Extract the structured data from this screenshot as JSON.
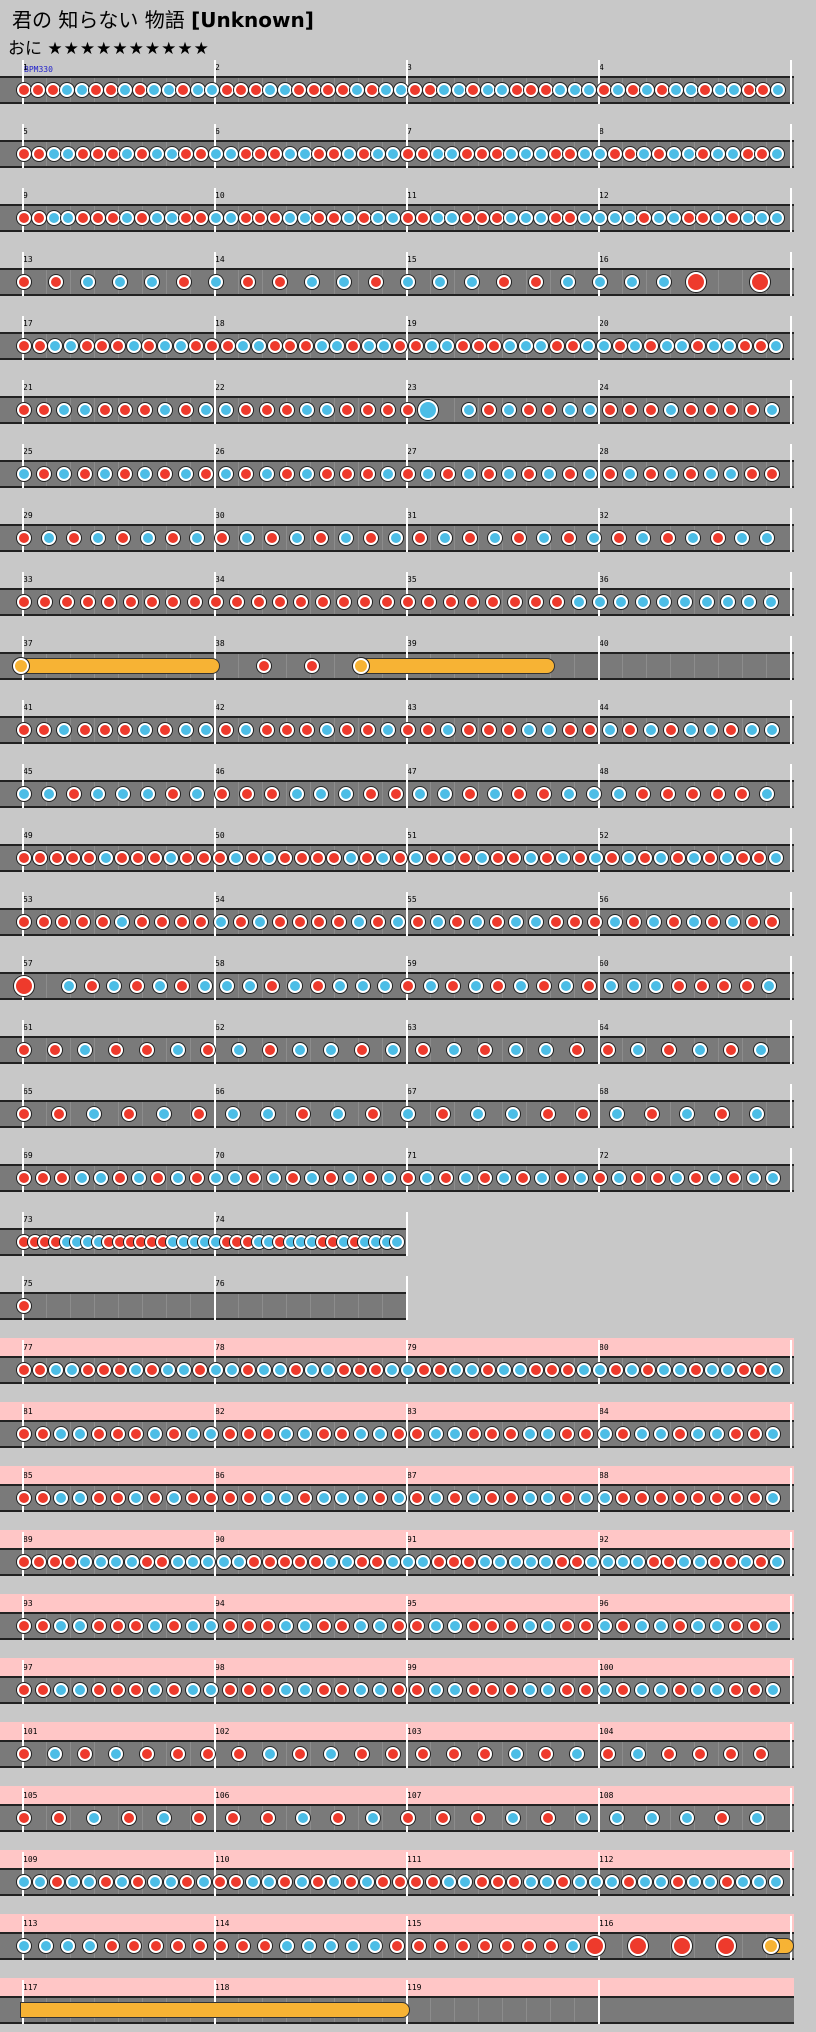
{
  "song": {
    "title": "君の 知らない 物語",
    "subtitle": "[Unknown]"
  },
  "course": {
    "name": "おに",
    "stars": "★★★★★★★★★★"
  },
  "bpm_label": "BPM330",
  "colors": {
    "don": "#ee3a2c",
    "ka": "#4cbde6",
    "roll": "#f7b334",
    "lane": "#7a7a7a",
    "gogo_band": "#ffc6c6",
    "background": "#c8c8c8"
  },
  "rows": [
    {
      "measures": [
        1,
        2,
        3,
        4
      ],
      "gogo": false,
      "notes": "dddkkddkdkkdkkdddkkddddkdkkddkkdkkdddkkkdkdkdkkdkkddk"
    },
    {
      "measures": [
        5,
        6,
        7,
        8
      ],
      "gogo": false,
      "notes": "ddkkdddkdkkddkkdddkkddkdkkddkkdddkkkddkkddkdkkdkkddk"
    },
    {
      "measures": [
        9,
        10,
        11,
        12
      ],
      "gogo": false,
      "notes": "ddkkdddkdkkddkkdddkkddkdkkddkkdddkkkddkkkkdkkddkdkkk"
    },
    {
      "measures": [
        13,
        14,
        15,
        16
      ],
      "gogo": false,
      "notes": "ddkkkdkddkkdkkkddkkkkD-D"
    },
    {
      "measures": [
        17,
        18,
        19,
        20
      ],
      "gogo": false,
      "notes": "ddkkdddkdkkdddkkdddkkdkkddkkdddkkkddkkdkdkkdkkddk"
    },
    {
      "measures": [
        21,
        22,
        23,
        24
      ],
      "gogo": false,
      "notes": "ddkkdddkdkkdddkkddddK-kdkddkkdddkddddk"
    },
    {
      "measures": [
        25,
        26,
        27,
        28
      ],
      "gogo": false,
      "notes": "kdkdkdkdkdkdkdkdddkdkdkdkdkdkdkdkdkkdd"
    },
    {
      "measures": [
        29,
        30,
        31,
        32
      ],
      "gogo": false,
      "notes": "dkdkdkdkdkdkdkdkdkdkdkdkdkdkdkk"
    },
    {
      "measures": [
        33,
        34,
        35,
        36
      ],
      "gogo": false,
      "notes": "ddddddddddddddddddddddddddkkkkkkkkkk"
    },
    {
      "measures": [
        37,
        38,
        39,
        40
      ],
      "gogo": false,
      "roll": true,
      "notes": "r-dd-r"
    },
    {
      "measures": [
        41,
        42,
        43,
        44
      ],
      "gogo": false,
      "notes": "ddkdddkdkkdkdddkddkddkdddkkddkdkdkkdkk"
    },
    {
      "measures": [
        45,
        46,
        47,
        48
      ],
      "gogo": false,
      "notes": "kkdkkkdkdddkkkddkkdkddkkkdddddk"
    },
    {
      "measures": [
        49,
        50,
        51,
        52
      ],
      "gogo": false,
      "notes": "dddddkdddkdddkdkddddkdkdkdkdkddkdkdkdkdkdkdkddk"
    },
    {
      "measures": [
        53,
        54,
        55,
        56
      ],
      "gogo": false,
      "notes": "dddddkddddkdkddddkdkdkdkdkkdddkdkdkdkdd"
    },
    {
      "measures": [
        57,
        58,
        59,
        60
      ],
      "gogo": false,
      "notes": "D-kdkdkdkkkdkdkkkdkdkdkdkdkkkddddk"
    },
    {
      "measures": [
        61,
        62,
        63,
        64
      ],
      "gogo": false,
      "notes": "ddkddkdkdkkdkdkdkkddkdkdk"
    },
    {
      "measures": [
        65,
        66,
        67,
        68
      ],
      "gogo": false,
      "notes": "ddkdkdkkdkdkdkkddkdkdk"
    },
    {
      "measures": [
        69,
        70,
        71,
        72
      ],
      "gogo": false,
      "notes": "dddkkdkdkdkkdkdkdkdkdkdkdkdkdkdkddkdkdkk"
    },
    {
      "measures": [
        73,
        74
      ],
      "gogo": false,
      "short": true,
      "notes": "ddddkkkkddddddkkkkkdddkkdkkkddkdkkkk"
    },
    {
      "measures": [
        75,
        76
      ],
      "gogo": false,
      "short": true,
      "notes": "d"
    },
    {
      "measures": [
        77,
        78,
        79,
        80
      ],
      "gogo": true,
      "notes": "ddkkdddkdkkdkkdkkdkkdddkkddkkdkkdddkkdkdkkdkkddk"
    },
    {
      "measures": [
        81,
        82,
        83,
        84
      ],
      "gogo": true,
      "notes": "ddkkdddkdkkdddkkddkkddkkdddkkddkdkkdkkddk"
    },
    {
      "measures": [
        85,
        86,
        87,
        88
      ],
      "gogo": true,
      "notes": "ddkkddkdkddddkkdkkkdkdkdkddkkdkkddddddddk"
    },
    {
      "measures": [
        89,
        90,
        91,
        92
      ],
      "gogo": true,
      "notes": "ddddkkkkddkkkkkdddddkkddkkkdddkkkkkddkkkkddkkddkdk"
    },
    {
      "measures": [
        93,
        94,
        95,
        96
      ],
      "gogo": true,
      "notes": "ddkkdddkdkkdddkkddkkddkkdddkkddkdkkdkkddk"
    },
    {
      "measures": [
        97,
        98,
        99,
        100
      ],
      "gogo": true,
      "notes": "ddkkdddkdkkdddkkddkkddkkdddkkddkdkkdkkddk"
    },
    {
      "measures": [
        101,
        102,
        103,
        104
      ],
      "gogo": true,
      "notes": "dkdkddddkdkdddddkdkdkdddd"
    },
    {
      "measures": [
        105,
        106,
        107,
        108
      ],
      "gogo": true,
      "notes": "ddkdkdddkdkdddkdkkkkdk"
    },
    {
      "measures": [
        109,
        110,
        111,
        112
      ],
      "gogo": true,
      "notes": "kkdkkdkdkkdkddkkdkdkdkddddkkdddkkdkkkdkkdkkdkkk"
    },
    {
      "measures": [
        113,
        114,
        115,
        116
      ],
      "gogo": true,
      "notes": "kkkkddddddddkkkkkddddddddkD-D-D-D-r"
    },
    {
      "measures": [
        117,
        118,
        119
      ],
      "gogo": true,
      "roll": true,
      "notes": "r"
    }
  ]
}
